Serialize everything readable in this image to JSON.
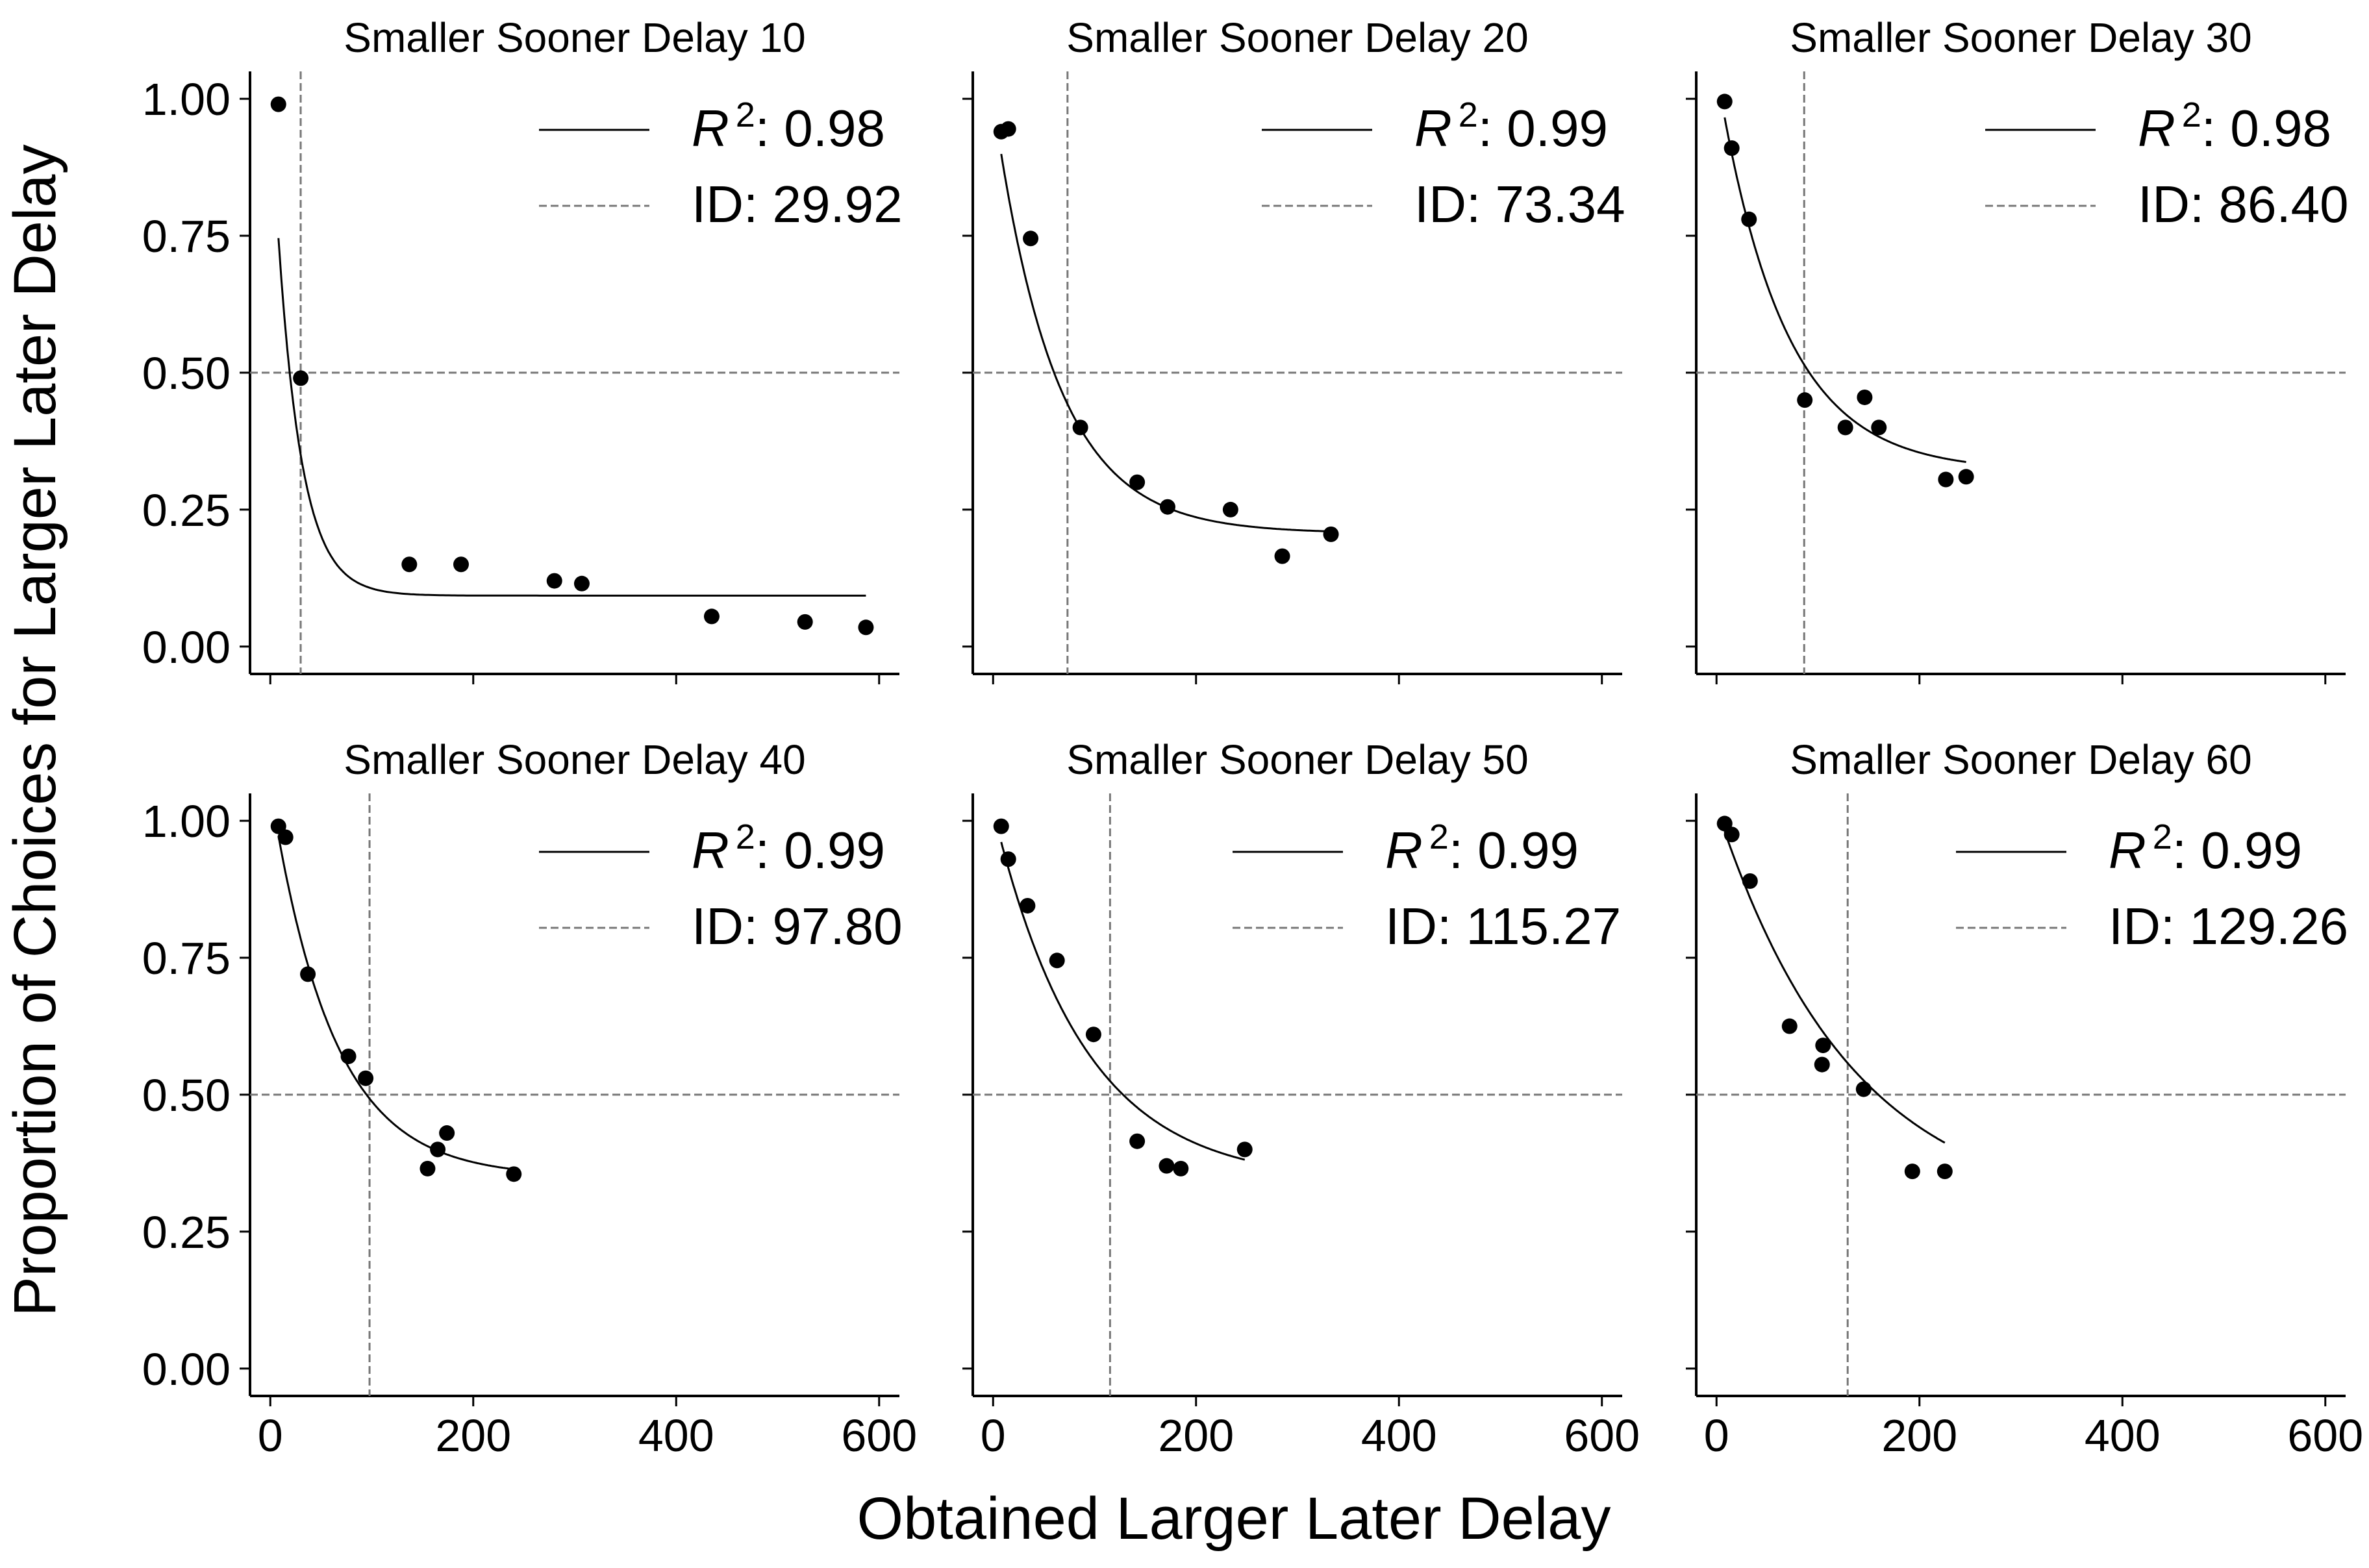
{
  "figure": {
    "ylabel": "Proportion of Choices for Larger Later Delay",
    "xlabel": "Obtained Larger Later Delay"
  },
  "chart_data": [
    {
      "type": "scatter",
      "title": "Smaller Sooner Delay 10",
      "xlim": [
        -20,
        620
      ],
      "ylim": [
        -0.05,
        1.05
      ],
      "xticks": [
        "0",
        "200",
        "400",
        "600"
      ],
      "yticks": [
        "0.00",
        "0.25",
        "0.50",
        "0.75",
        "1.00"
      ],
      "legend": {
        "r2_label": "R",
        "r2_sup": "2",
        "r2_value": ": 0.98",
        "id_label": "ID: 29.92"
      },
      "indifference_point": 29.92,
      "reference_y": 0.5,
      "points": [
        [
          8,
          0.99
        ],
        [
          30,
          0.49
        ],
        [
          137,
          0.15
        ],
        [
          188,
          0.15
        ],
        [
          280,
          0.12
        ],
        [
          307,
          0.115
        ],
        [
          435,
          0.055
        ],
        [
          527,
          0.045
        ],
        [
          587,
          0.035
        ]
      ],
      "fit": {
        "asymptote": 0.093,
        "span": 0.917,
        "k": 0.0425,
        "x_start": 8,
        "x_end": 587
      }
    },
    {
      "type": "scatter",
      "title": "Smaller Sooner Delay 20",
      "xlim": [
        -20,
        620
      ],
      "ylim": [
        -0.05,
        1.05
      ],
      "xticks": [
        "0",
        "200",
        "400",
        "600"
      ],
      "yticks": [
        "0.00",
        "0.25",
        "0.50",
        "0.75",
        "1.00"
      ],
      "legend": {
        "r2_label": "R",
        "r2_sup": "2",
        "r2_value": ": 0.99",
        "id_label": "ID: 73.34"
      },
      "indifference_point": 73.34,
      "reference_y": 0.5,
      "points": [
        [
          8,
          0.94
        ],
        [
          15,
          0.945
        ],
        [
          37,
          0.745
        ],
        [
          86,
          0.4
        ],
        [
          142,
          0.3
        ],
        [
          172,
          0.255
        ],
        [
          234,
          0.25
        ],
        [
          285,
          0.165
        ],
        [
          333,
          0.205
        ]
      ],
      "fit": {
        "asymptote": 0.207,
        "span": 0.79,
        "k": 0.0165,
        "x_start": 8,
        "x_end": 333
      }
    },
    {
      "type": "scatter",
      "title": "Smaller Sooner Delay 30",
      "xlim": [
        -20,
        620
      ],
      "ylim": [
        -0.05,
        1.05
      ],
      "xticks": [
        "0",
        "200",
        "400",
        "600"
      ],
      "yticks": [
        "0.00",
        "0.25",
        "0.50",
        "0.75",
        "1.00"
      ],
      "legend": {
        "r2_label": "R",
        "r2_sup": "2",
        "r2_value": ": 0.98",
        "id_label": "ID: 86.40"
      },
      "indifference_point": 86.4,
      "reference_y": 0.5,
      "points": [
        [
          8,
          0.995
        ],
        [
          15,
          0.91
        ],
        [
          32,
          0.78
        ],
        [
          87,
          0.45
        ],
        [
          127,
          0.4
        ],
        [
          146,
          0.455
        ],
        [
          160,
          0.4
        ],
        [
          226,
          0.305
        ],
        [
          246,
          0.31
        ]
      ],
      "fit": {
        "asymptote": 0.32,
        "span": 0.73,
        "k": 0.0153,
        "x_start": 8,
        "x_end": 246
      }
    },
    {
      "type": "scatter",
      "title": "Smaller Sooner Delay 40",
      "xlim": [
        -20,
        620
      ],
      "ylim": [
        -0.05,
        1.05
      ],
      "xticks": [
        "0",
        "200",
        "400",
        "600"
      ],
      "yticks": [
        "0.00",
        "0.25",
        "0.50",
        "0.75",
        "1.00"
      ],
      "legend": {
        "r2_label": "R",
        "r2_sup": "2",
        "r2_value": ": 0.99",
        "id_label": "ID: 97.80"
      },
      "indifference_point": 97.8,
      "reference_y": 0.5,
      "points": [
        [
          8,
          0.99
        ],
        [
          15,
          0.97
        ],
        [
          37,
          0.72
        ],
        [
          77,
          0.57
        ],
        [
          94,
          0.53
        ],
        [
          155,
          0.365
        ],
        [
          165,
          0.4
        ],
        [
          174,
          0.43
        ],
        [
          240,
          0.355
        ]
      ],
      "fit": {
        "asymptote": 0.35,
        "span": 0.71,
        "k": 0.0164,
        "x_start": 8,
        "x_end": 240
      }
    },
    {
      "type": "scatter",
      "title": "Smaller Sooner Delay 50",
      "xlim": [
        -20,
        620
      ],
      "ylim": [
        -0.05,
        1.05
      ],
      "xticks": [
        "0",
        "200",
        "400",
        "600"
      ],
      "yticks": [
        "0.00",
        "0.25",
        "0.50",
        "0.75",
        "1.00"
      ],
      "legend": {
        "r2_label": "R",
        "r2_sup": "2",
        "r2_value": ": 0.99",
        "id_label": "ID: 115.27"
      },
      "indifference_point": 115.27,
      "reference_y": 0.5,
      "points": [
        [
          8,
          0.99
        ],
        [
          15,
          0.93
        ],
        [
          34,
          0.845
        ],
        [
          63,
          0.745
        ],
        [
          99,
          0.61
        ],
        [
          142,
          0.415
        ],
        [
          171,
          0.37
        ],
        [
          185,
          0.365
        ],
        [
          248,
          0.4
        ]
      ],
      "fit": {
        "asymptote": 0.34,
        "span": 0.68,
        "k": 0.0113,
        "x_start": 8,
        "x_end": 248
      }
    },
    {
      "type": "scatter",
      "title": "Smaller Sooner Delay 60",
      "xlim": [
        -20,
        620
      ],
      "ylim": [
        -0.05,
        1.05
      ],
      "xticks": [
        "0",
        "200",
        "400",
        "600"
      ],
      "yticks": [
        "0.00",
        "0.25",
        "0.50",
        "0.75",
        "1.00"
      ],
      "legend": {
        "r2_label": "R",
        "r2_sup": "2",
        "r2_value": ": 0.99",
        "id_label": "ID: 129.26"
      },
      "indifference_point": 129.26,
      "reference_y": 0.5,
      "points": [
        [
          8,
          0.995
        ],
        [
          15,
          0.975
        ],
        [
          33,
          0.89
        ],
        [
          72,
          0.625
        ],
        [
          104,
          0.555
        ],
        [
          105,
          0.59
        ],
        [
          145,
          0.51
        ],
        [
          193,
          0.36
        ],
        [
          225,
          0.36
        ]
      ],
      "fit": {
        "asymptote": 0.275,
        "span": 0.75,
        "k": 0.00755,
        "x_start": 8,
        "x_end": 225
      }
    }
  ]
}
